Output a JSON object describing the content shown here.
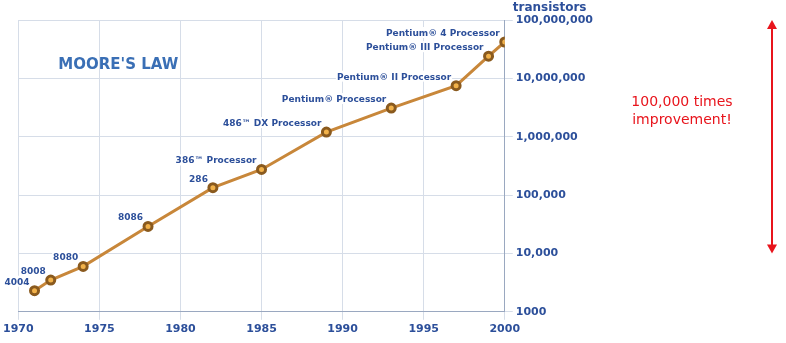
{
  "chart_data": {
    "type": "line",
    "title": "MOORE'S LAW",
    "y_label": "transistors",
    "annotation": "100,000 times improvement!",
    "x": [
      1971,
      1972,
      1974,
      1978,
      1982,
      1985,
      1989,
      1993,
      1997,
      1999,
      2000
    ],
    "point_labels": [
      "4004",
      "8008",
      "8080",
      "8086",
      "286",
      "386™ Processor",
      "486™ DX Processor",
      "Pentium® Processor",
      "Pentium® II Processor",
      "Pentium® III Processor",
      "Pentium® 4 Processor"
    ],
    "values": [
      2300,
      3500,
      6000,
      29000,
      134000,
      275000,
      1200000,
      3100000,
      7500000,
      24000000,
      42000000
    ],
    "color": "#c8873a",
    "marker": "circle",
    "log": "y",
    "grid": true,
    "xlim": [
      1970,
      2000
    ],
    "xticks": [
      1970,
      1975,
      1980,
      1985,
      1990,
      1995,
      2000
    ],
    "ylim": [
      1000,
      100000000
    ],
    "yticks": [
      1000,
      {
        "value": 10000,
        "label": "10,000"
      },
      {
        "value": 100000,
        "label": "100,000"
      },
      {
        "value": 1000000,
        "label": "1,000,000"
      },
      {
        "value": 10000000,
        "label": "10,000,000"
      },
      {
        "value": 100000000,
        "label": "100,000,000"
      }
    ]
  }
}
